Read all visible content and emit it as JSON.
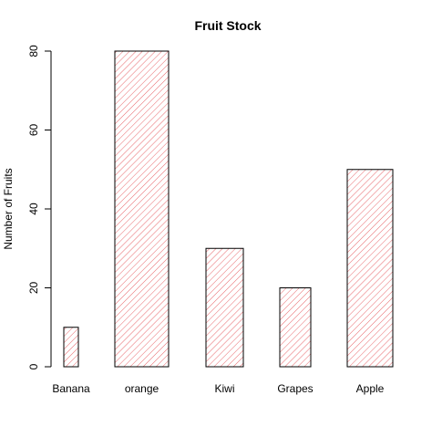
{
  "chart_data": {
    "type": "bar",
    "title": "Fruit Stock",
    "xlabel": "",
    "ylabel": "Number of Fruits",
    "categories": [
      "Banana",
      "orange",
      "Kiwi",
      "Grapes",
      "Apple"
    ],
    "values": [
      10,
      80,
      30,
      20,
      50
    ],
    "ylim": [
      0,
      80
    ],
    "yticks": [
      "0",
      "20",
      "40",
      "60",
      "80"
    ],
    "grid": false,
    "legend": "none",
    "bar_fill": "hatched",
    "bar_color": "#e8686c",
    "border_color": "#000000"
  }
}
